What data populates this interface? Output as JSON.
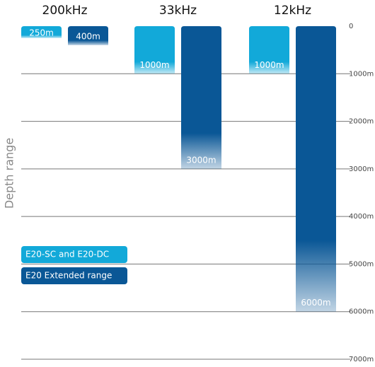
{
  "chart_data": {
    "type": "bar",
    "orientation": "vertical-down",
    "y_label": "Depth range",
    "categories": [
      "200kHz",
      "33kHz",
      "12kHz"
    ],
    "series": [
      {
        "name": "E20-SC and E20-DC",
        "color": "#12a9d9",
        "values": [
          250,
          1000,
          1000
        ],
        "value_labels": [
          "250m",
          "1000m",
          "1000m"
        ]
      },
      {
        "name": "E20 Extended range",
        "color": "#0a5796",
        "values": [
          400,
          3000,
          6000
        ],
        "value_labels": [
          "400m",
          "3000m",
          "6000m"
        ]
      }
    ],
    "ylim": [
      0,
      7000
    ],
    "yticks": [
      0,
      {
        "value": 1000,
        "label": "1000m"
      },
      {
        "value": 2000,
        "label": "2000m"
      },
      {
        "value": 3000,
        "label": "3000m"
      },
      {
        "value": 4000,
        "label": "4000m"
      },
      {
        "value": 5000,
        "label": "5000m"
      },
      {
        "value": 6000,
        "label": "6000m"
      },
      {
        "value": 7000,
        "label": "7000m"
      }
    ],
    "grid": true
  }
}
